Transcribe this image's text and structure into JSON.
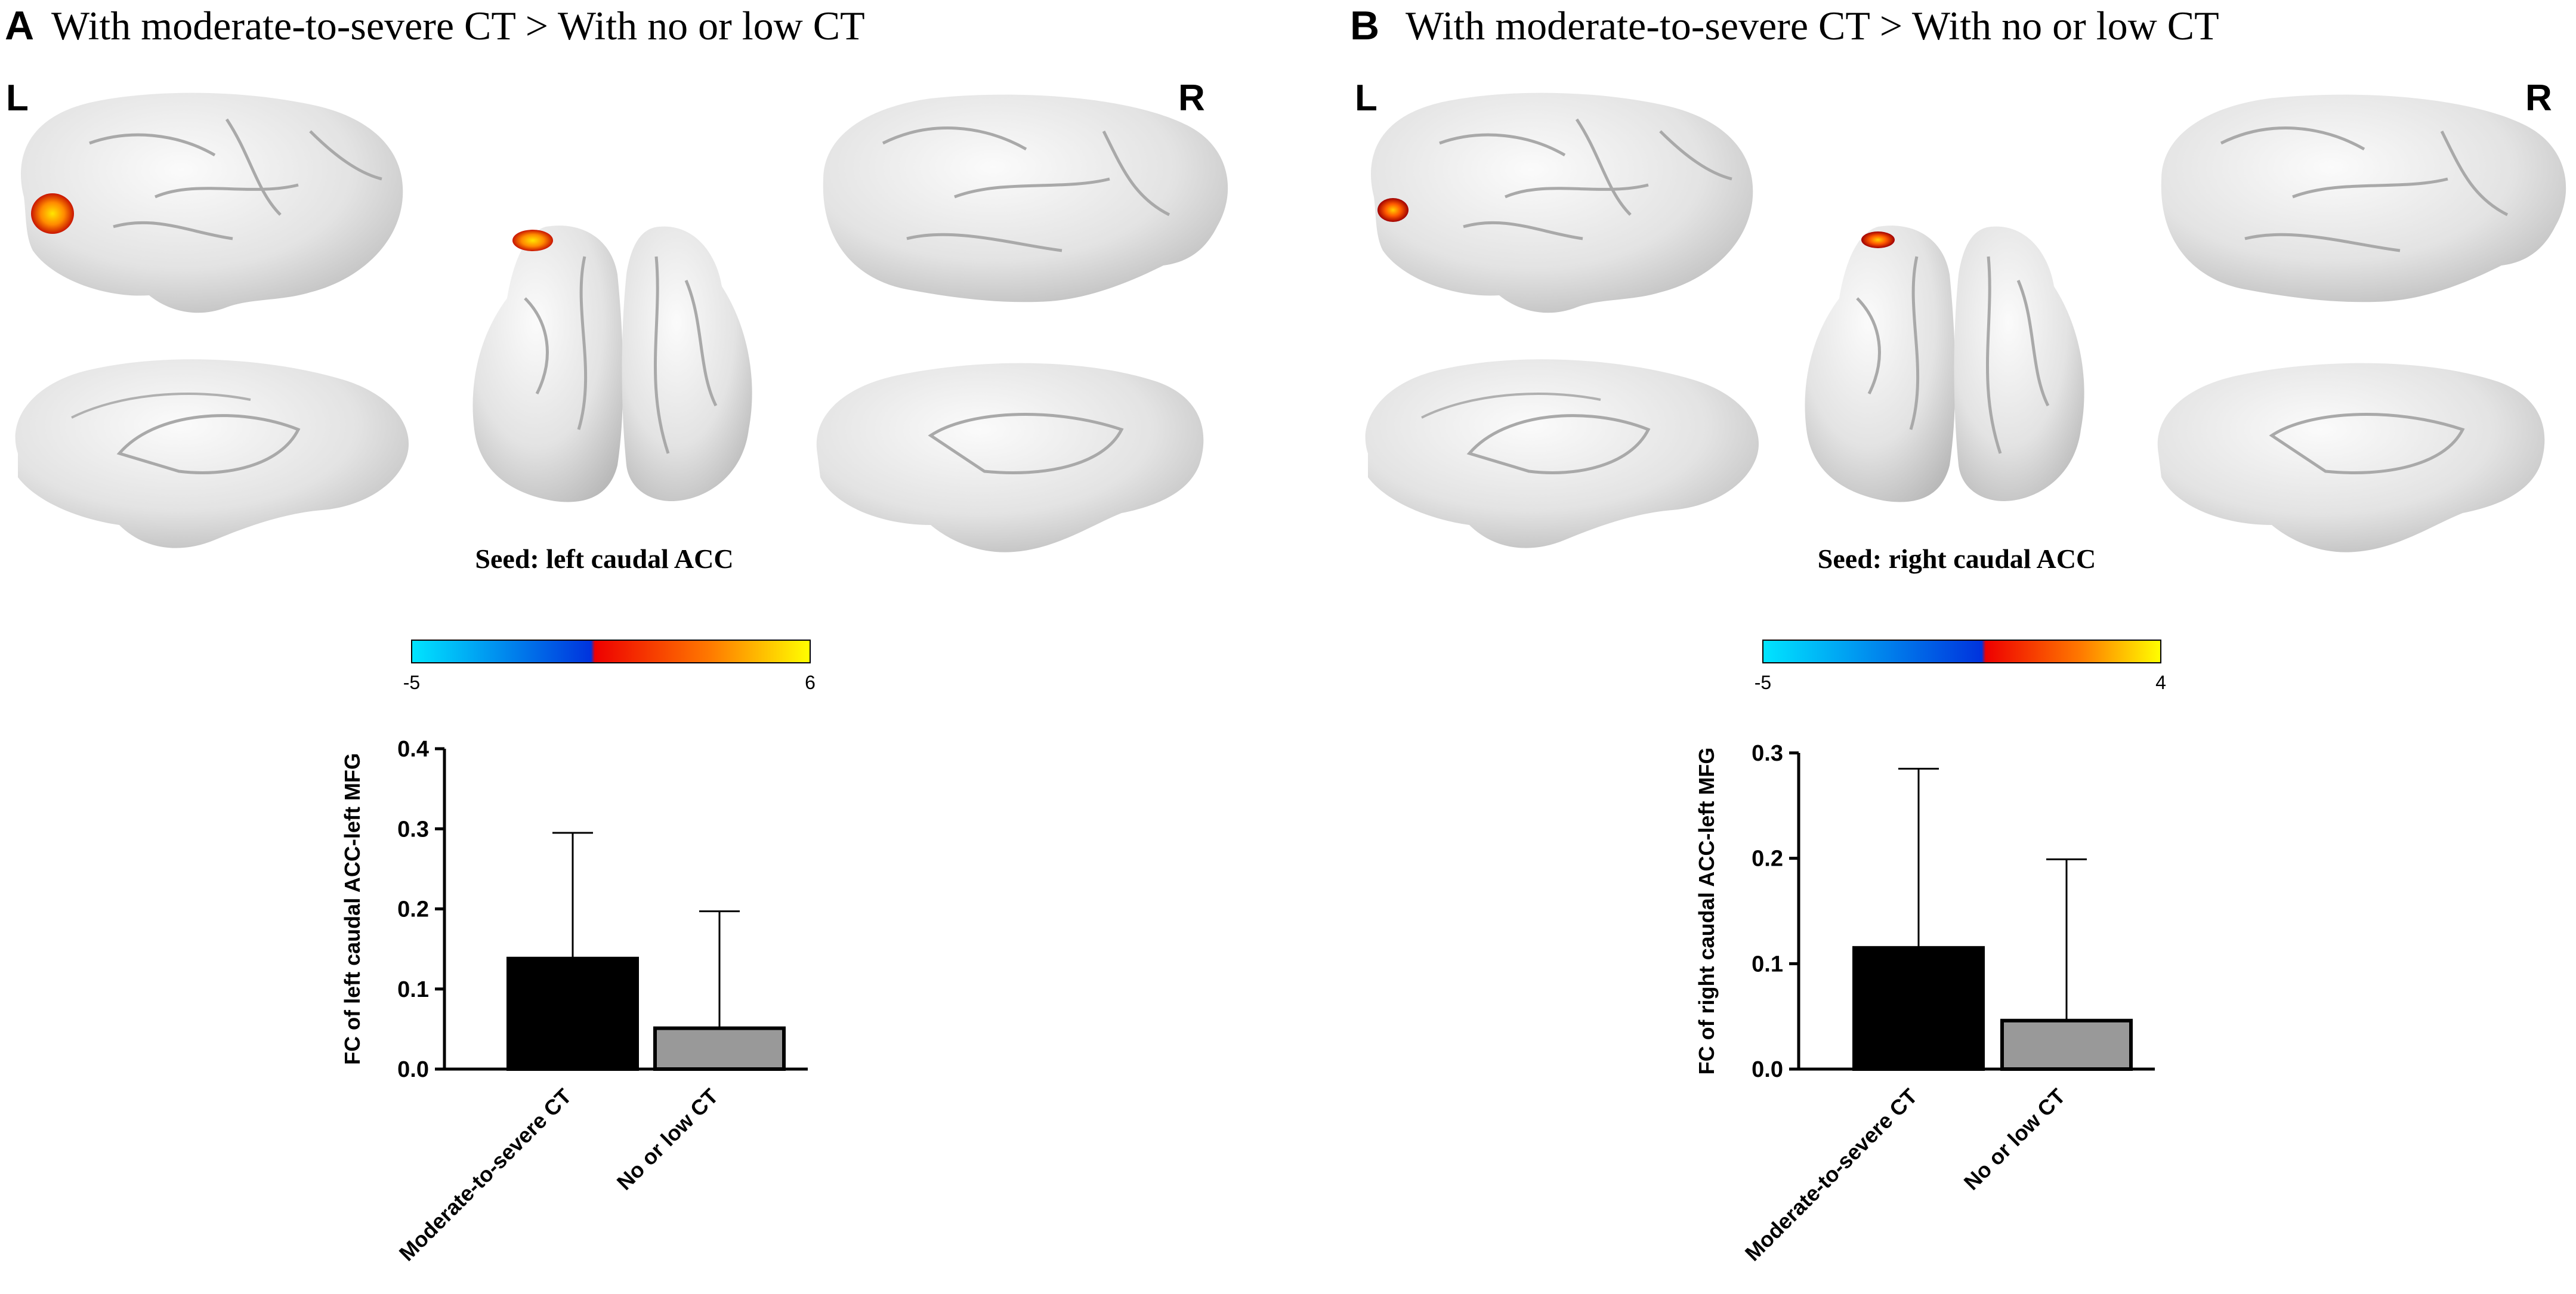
{
  "panels": [
    {
      "letter": "A",
      "title": "With moderate-to-severe CT > With no or low CT",
      "hemi_left": "L",
      "hemi_right": "R",
      "seed_label": "Seed: left caudal ACC",
      "colorbar": {
        "min_label": "-5",
        "max_label": "6",
        "min": -5,
        "max": 6
      },
      "chart_data": {
        "type": "bar",
        "categories": [
          "Moderate-to-severe CT",
          "No or low CT"
        ],
        "values": [
          0.138,
          0.051
        ],
        "errors": [
          0.157,
          0.146
        ],
        "colors": [
          "#000000",
          "#999999"
        ],
        "ylabel": "FC of left caudal ACC-left MFG",
        "xlabel": "",
        "ylim": [
          0,
          0.4
        ],
        "yticks": [
          "0.0",
          "0.1",
          "0.2",
          "0.3",
          "0.4"
        ]
      }
    },
    {
      "letter": "B",
      "title": "With moderate-to-severe CT > With no or low CT",
      "hemi_left": "L",
      "hemi_right": "R",
      "seed_label": "Seed: right caudal ACC",
      "colorbar": {
        "min_label": "-5",
        "max_label": "4",
        "min": -5,
        "max": 4
      },
      "chart_data": {
        "type": "bar",
        "categories": [
          "Moderate-to-severe CT",
          "No or low CT"
        ],
        "values": [
          0.115,
          0.046
        ],
        "errors": [
          0.17,
          0.153
        ],
        "colors": [
          "#000000",
          "#999999"
        ],
        "ylabel": "FC of right caudal ACC-left MFG",
        "xlabel": "",
        "ylim": [
          0,
          0.3
        ],
        "yticks": [
          "0.0",
          "0.1",
          "0.2",
          "0.3"
        ]
      }
    }
  ]
}
